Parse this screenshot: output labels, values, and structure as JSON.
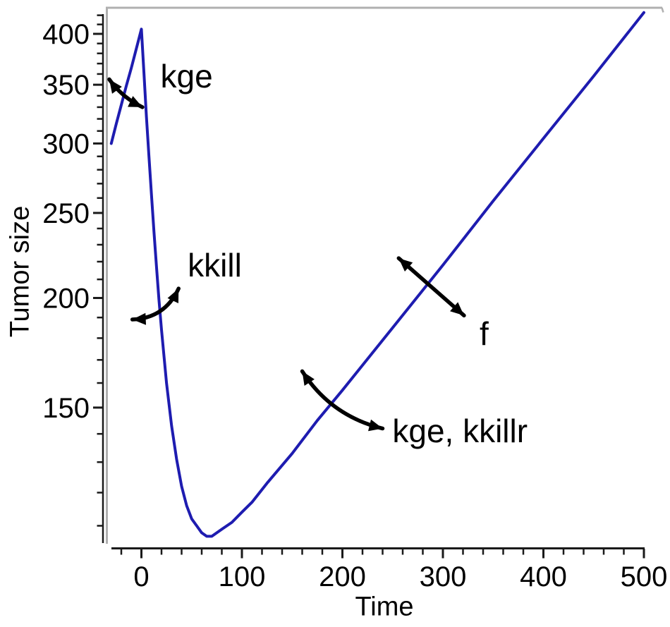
{
  "chart_data": {
    "type": "line",
    "title": "",
    "xlabel": "Time",
    "ylabel": "Tumor size",
    "x_axis": {
      "min": -28,
      "max": 500,
      "major_ticks": [
        0,
        100,
        200,
        300,
        400,
        500
      ],
      "minor_tick_step": 20,
      "minor_tick_start": -20
    },
    "y_axis": {
      "scale": "log",
      "min": 104,
      "max": 428,
      "major_ticks": [
        150,
        200,
        250,
        300,
        350,
        400
      ],
      "minor_tick_step": 10,
      "minor_tick_min": 110,
      "minor_tick_max": 420
    },
    "grid": "off",
    "legend": "none",
    "axis_color": "#1a1a1a",
    "border_color": "#b0b0b0",
    "series": [
      {
        "name": "Tumor size",
        "color": "#1e1cb0",
        "points": [
          [
            -30,
            300
          ],
          [
            -25,
            316
          ],
          [
            -20,
            332
          ],
          [
            -15,
            349
          ],
          [
            -10,
            366
          ],
          [
            -5,
            385
          ],
          [
            0,
            405
          ],
          [
            2.5,
            361
          ],
          [
            5,
            322
          ],
          [
            7.5,
            290
          ],
          [
            10,
            262
          ],
          [
            12.5,
            238
          ],
          [
            15,
            217
          ],
          [
            17.5,
            199
          ],
          [
            20,
            184
          ],
          [
            25,
            160
          ],
          [
            30,
            143
          ],
          [
            35,
            131
          ],
          [
            40,
            122
          ],
          [
            45,
            116
          ],
          [
            50,
            112
          ],
          [
            55,
            110
          ],
          [
            60,
            108
          ],
          [
            65,
            107
          ],
          [
            70,
            107
          ],
          [
            75,
            108
          ],
          [
            80,
            109
          ],
          [
            90,
            111
          ],
          [
            100,
            114
          ],
          [
            110,
            117
          ],
          [
            125,
            123
          ],
          [
            150,
            133
          ],
          [
            175,
            145
          ],
          [
            200,
            157
          ],
          [
            250,
            185
          ],
          [
            300,
            218
          ],
          [
            350,
            258
          ],
          [
            400,
            304
          ],
          [
            450,
            358
          ],
          [
            500,
            423
          ]
        ]
      }
    ],
    "annotations": [
      {
        "label": "kge",
        "label_pos": {
          "t": 45,
          "v": 358
        },
        "arrow": {
          "from": {
            "t": -32,
            "v": 355
          },
          "to": {
            "t": 1,
            "v": 330
          },
          "bow": -4
        }
      },
      {
        "label": "kkill",
        "label_pos": {
          "t": 73,
          "v": 218
        },
        "arrow": {
          "from": {
            "t": -9,
            "v": 189
          },
          "to": {
            "t": 37,
            "v": 205
          },
          "bow": -12
        }
      },
      {
        "label": "kge, kkillr",
        "label_pos": {
          "t": 317,
          "v": 141
        },
        "arrow": {
          "from": {
            "t": 160,
            "v": 165
          },
          "to": {
            "t": 240,
            "v": 142
          },
          "bow": -14
        }
      },
      {
        "label": "f",
        "label_pos": {
          "t": 341,
          "v": 182
        },
        "arrow": {
          "from": {
            "t": 256,
            "v": 222
          },
          "to": {
            "t": 321,
            "v": 191
          },
          "bow": 0
        }
      }
    ]
  }
}
